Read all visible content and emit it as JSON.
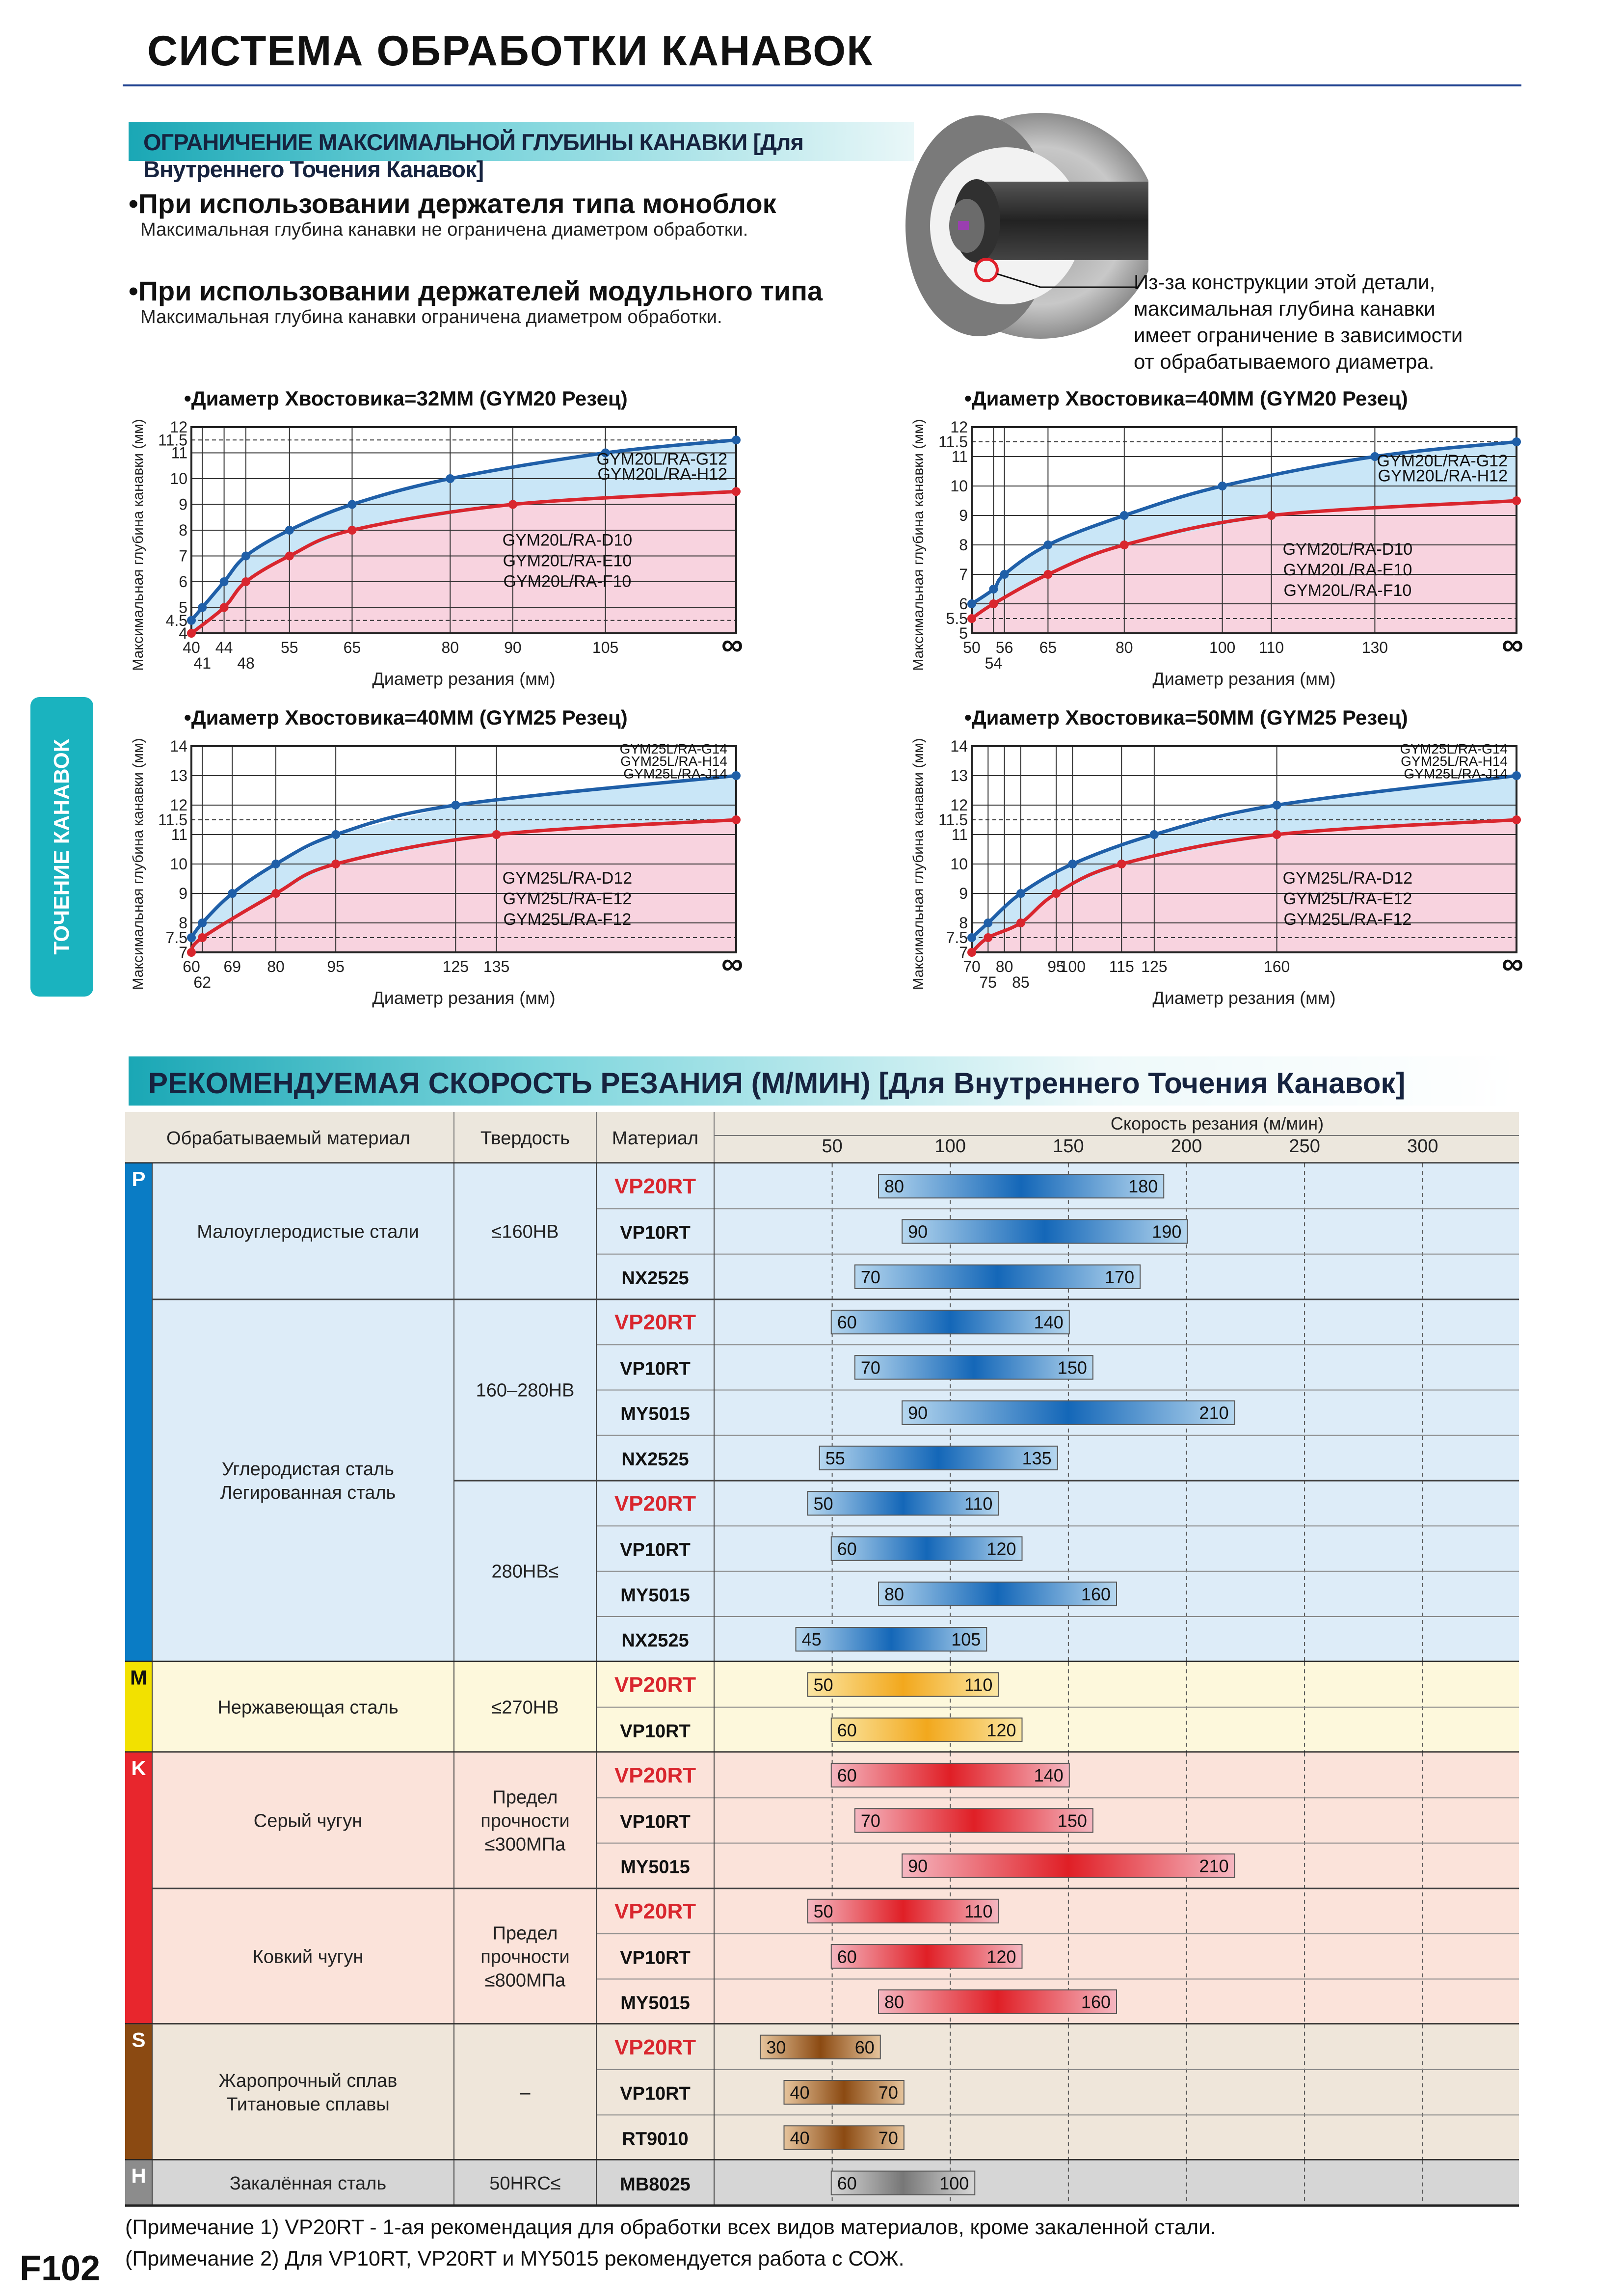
{
  "title": "СИСТЕМА ОБРАБОТКИ КАНАВОК",
  "section1": {
    "heading": "ОГРАНИЧЕНИЕ МАКСИМАЛЬНОЙ ГЛУБИНЫ КАНАВКИ [Для Внутреннего Точения Канавок]",
    "bullets": [
      {
        "head": "При использовании держателя типа моноблок",
        "desc": "Максимальная глубина канавки не ограничена диаметром обработки."
      },
      {
        "head": "При использовании держателей модульного типа",
        "desc": "Максимальная глубина канавки ограничена диаметром обработки."
      }
    ],
    "note": [
      "Из-за конструкции этой детали,",
      "максимальная глубина канавки",
      "имеет ограничение в зависимости",
      "от обрабатываемого диаметра."
    ]
  },
  "side_tab": "ТОЧЕНИЕ КАНАВОК",
  "chart_common": {
    "ylabel": "Максимальная глубина канавки (мм)",
    "xlabel": "Диаметр резания (мм)",
    "infinity": "∞"
  },
  "colors": {
    "blue": "#1f5fa8",
    "red": "#d9262e",
    "blue_fill": "#c9e6f7",
    "red_fill": "#f8d3df",
    "grid": "#333333"
  },
  "chart_data": [
    {
      "type": "line",
      "title": "•Диаметр Хвостовика=32ММ (GYM20 Резец)",
      "ylim": [
        4,
        12
      ],
      "yticks": [
        4,
        4.5,
        5,
        6,
        7,
        8,
        9,
        10,
        11,
        11.5,
        12
      ],
      "dashed": [
        4.5,
        11.5
      ],
      "xticks": [
        "40",
        "44",
        "55",
        "65",
        "80",
        "90",
        "105"
      ],
      "xticks_low": [
        "41",
        "48"
      ],
      "xpos": {
        "40": 0,
        "41": 0.02,
        "44": 0.06,
        "48": 0.1,
        "55": 0.18,
        "65": 0.295,
        "80": 0.475,
        "90": 0.59,
        "105": 0.76,
        "inf": 1
      },
      "series": [
        {
          "name": "GYM20L/RA-G12 GYM20L/RA-H12",
          "labels": [
            "GYM20L/RA-G12",
            "GYM20L/RA-H12"
          ],
          "color": "blue",
          "x": [
            "40",
            "41",
            "44",
            "48",
            "55",
            "65",
            "80",
            "105",
            "inf"
          ],
          "y": [
            4.5,
            5,
            6,
            7,
            8,
            9,
            10,
            11,
            11.5
          ]
        },
        {
          "name": "GYM20L/RA-D10 GYM20L/RA-E10 GYM20L/RA-F10",
          "labels": [
            "GYM20L/RA-D10",
            "GYM20L/RA-E10",
            "GYM20L/RA-F10"
          ],
          "color": "red",
          "x": [
            "40",
            "44",
            "48",
            "55",
            "65",
            "90",
            "inf"
          ],
          "y": [
            4,
            5,
            6,
            7,
            8,
            9,
            9.5
          ]
        }
      ]
    },
    {
      "type": "line",
      "title": "•Диаметр Хвостовика=40ММ (GYM20 Резец)",
      "ylim": [
        5,
        12
      ],
      "yticks": [
        5,
        5.5,
        6,
        7,
        8,
        9,
        10,
        11,
        11.5,
        12
      ],
      "dashed": [
        5.5,
        11.5
      ],
      "xticks": [
        "50",
        "56",
        "65",
        "80",
        "100",
        "110",
        "130"
      ],
      "xticks_low": [
        "54"
      ],
      "xpos": {
        "50": 0,
        "54": 0.04,
        "56": 0.06,
        "65": 0.14,
        "80": 0.28,
        "100": 0.46,
        "110": 0.55,
        "130": 0.74,
        "inf": 1
      },
      "series": [
        {
          "name": "GYM20L/RA-G12 GYM20L/RA-H12",
          "labels": [
            "GYM20L/RA-G12",
            "GYM20L/RA-H12"
          ],
          "color": "blue",
          "x": [
            "50",
            "54",
            "56",
            "65",
            "80",
            "100",
            "130",
            "inf"
          ],
          "y": [
            6,
            6.5,
            7,
            8,
            9,
            10,
            11,
            11.5
          ]
        },
        {
          "name": "GYM20L/RA-D10 GYM20L/RA-E10 GYM20L/RA-F10",
          "labels": [
            "GYM20L/RA-D10",
            "GYM20L/RA-E10",
            "GYM20L/RA-F10"
          ],
          "color": "red",
          "x": [
            "50",
            "54",
            "65",
            "80",
            "110",
            "inf"
          ],
          "y": [
            5.5,
            6,
            7,
            8,
            9,
            9.5
          ]
        }
      ]
    },
    {
      "type": "line",
      "title": "•Диаметр Хвостовика=40ММ (GYM25 Резец)",
      "ylim": [
        7,
        14
      ],
      "yticks": [
        7,
        7.5,
        8,
        9,
        10,
        11,
        11.5,
        12,
        13,
        14
      ],
      "dashed": [
        7.5,
        11.5
      ],
      "xticks": [
        "60",
        "69",
        "80",
        "95",
        "125",
        "135"
      ],
      "xticks_low": [
        "62"
      ],
      "xpos": {
        "60": 0,
        "62": 0.02,
        "69": 0.075,
        "80": 0.155,
        "95": 0.265,
        "125": 0.485,
        "135": 0.56,
        "inf": 1
      },
      "series": [
        {
          "name": "GYM25L/RA-G14 GYM25L/RA-H14 GYM25L/RA-J14",
          "labels": [
            "GYM25L/RA-G14",
            "GYM25L/RA-H14",
            "GYM25L/RA-J14"
          ],
          "color": "blue",
          "x": [
            "60",
            "62",
            "69",
            "80",
            "95",
            "125",
            "inf"
          ],
          "y": [
            7.5,
            8,
            9,
            10,
            11,
            12,
            13
          ]
        },
        {
          "name": "GYM25L/RA-D12 GYM25L/RA-E12 GYM25L/RA-F12",
          "labels": [
            "GYM25L/RA-D12",
            "GYM25L/RA-E12",
            "GYM25L/RA-F12"
          ],
          "color": "red",
          "x": [
            "60",
            "62",
            "80",
            "95",
            "135",
            "inf"
          ],
          "y": [
            7,
            7.5,
            9,
            10,
            11,
            11.5
          ]
        }
      ]
    },
    {
      "type": "line",
      "title": "•Диаметр Хвостовика=50ММ (GYM25 Резец)",
      "ylim": [
        7,
        14
      ],
      "yticks": [
        7,
        7.5,
        8,
        9,
        10,
        11,
        11.5,
        12,
        13,
        14
      ],
      "dashed": [
        7.5,
        11.5
      ],
      "xticks": [
        "70",
        "80",
        "95",
        "100",
        "115",
        "125",
        "160"
      ],
      "xticks_low": [
        "75",
        "85"
      ],
      "xpos": {
        "70": 0,
        "75": 0.03,
        "80": 0.06,
        "85": 0.09,
        "95": 0.155,
        "100": 0.185,
        "115": 0.275,
        "125": 0.335,
        "160": 0.56,
        "inf": 1
      },
      "series": [
        {
          "name": "GYM25L/RA-G14 GYM25L/RA-H14 GYM25L/RA-J14",
          "labels": [
            "GYM25L/RA-G14",
            "GYM25L/RA-H14",
            "GYM25L/RA-J14"
          ],
          "color": "blue",
          "x": [
            "70",
            "75",
            "85",
            "100",
            "125",
            "160",
            "inf"
          ],
          "y": [
            7.5,
            8,
            9,
            10,
            11,
            12,
            13
          ]
        },
        {
          "name": "GYM25L/RA-D12 GYM25L/RA-E12 GYM25L/RA-F12",
          "labels": [
            "GYM25L/RA-D12",
            "GYM25L/RA-E12",
            "GYM25L/RA-F12"
          ],
          "color": "red",
          "x": [
            "70",
            "75",
            "85",
            "95",
            "115",
            "160",
            "inf"
          ],
          "y": [
            7,
            7.5,
            8,
            9,
            10,
            11,
            11.5
          ]
        }
      ]
    }
  ],
  "section2": {
    "heading": "РЕКОМЕНДУЕМАЯ СКОРОСТЬ РЕЗАНИЯ (М/МИН) [Для Внутреннего Точения Канавок]",
    "headers": {
      "material": "Обрабатываемый материал",
      "hardness": "Твердость",
      "grade": "Материал",
      "speed": "Скорость резания (м/мин)"
    },
    "speed_scale": [
      50,
      100,
      150,
      200,
      250,
      300
    ],
    "speed_range": [
      0,
      320
    ],
    "groups": [
      {
        "code": "P",
        "color": "#0a7cc5",
        "bg": "#ddecf8",
        "bar": "blue",
        "materials": [
          {
            "name": [
              "Малоуглеродистые стали"
            ],
            "hardness_rows": [
              {
                "text": [
                  "≤160HB"
                ],
                "rows": [
                  [
                    "VP20RT",
                    80,
                    180
                  ],
                  [
                    "VP10RT",
                    90,
                    190
                  ],
                  [
                    "NX2525",
                    70,
                    170
                  ]
                ]
              }
            ]
          },
          {
            "name": [
              "Углеродистая сталь",
              "Легированная сталь"
            ],
            "hardness_rows": [
              {
                "text": [
                  "160–280HB"
                ],
                "rows": [
                  [
                    "VP20RT",
                    60,
                    140
                  ],
                  [
                    "VP10RT",
                    70,
                    150
                  ],
                  [
                    "MY5015",
                    90,
                    210
                  ],
                  [
                    "NX2525",
                    55,
                    135
                  ]
                ]
              },
              {
                "text": [
                  "280HB≤"
                ],
                "rows": [
                  [
                    "VP20RT",
                    50,
                    110
                  ],
                  [
                    "VP10RT",
                    60,
                    120
                  ],
                  [
                    "MY5015",
                    80,
                    160
                  ],
                  [
                    "NX2525",
                    45,
                    105
                  ]
                ]
              }
            ]
          }
        ]
      },
      {
        "code": "M",
        "color": "#f2e100",
        "bg": "#fdf8dc",
        "bar": "yellow",
        "materials": [
          {
            "name": [
              "Нержавеющая сталь"
            ],
            "hardness_rows": [
              {
                "text": [
                  "≤270HB"
                ],
                "rows": [
                  [
                    "VP20RT",
                    50,
                    110
                  ],
                  [
                    "VP10RT",
                    60,
                    120
                  ]
                ]
              }
            ]
          }
        ]
      },
      {
        "code": "K",
        "color": "#e8262d",
        "bg": "#fbe3da",
        "bar": "red",
        "materials": [
          {
            "name": [
              "Серый чугун"
            ],
            "hardness_rows": [
              {
                "text": [
                  "Предел",
                  "прочности",
                  "≤300МПа"
                ],
                "rows": [
                  [
                    "VP20RT",
                    60,
                    140
                  ],
                  [
                    "VP10RT",
                    70,
                    150
                  ],
                  [
                    "MY5015",
                    90,
                    210
                  ]
                ]
              }
            ]
          },
          {
            "name": [
              "Ковкий чугун"
            ],
            "hardness_rows": [
              {
                "text": [
                  "Предел",
                  "прочности",
                  "≤800МПа"
                ],
                "rows": [
                  [
                    "VP20RT",
                    50,
                    110
                  ],
                  [
                    "VP10RT",
                    60,
                    120
                  ],
                  [
                    "MY5015",
                    80,
                    160
                  ]
                ]
              }
            ]
          }
        ]
      },
      {
        "code": "S",
        "color": "#8b4a12",
        "bg": "#efe6da",
        "bar": "brown",
        "materials": [
          {
            "name": [
              "Жаропрочный сплав",
              "Титановые сплавы"
            ],
            "hardness_rows": [
              {
                "text": [
                  "–"
                ],
                "rows": [
                  [
                    "VP20RT",
                    30,
                    60
                  ],
                  [
                    "VP10RT",
                    40,
                    70
                  ],
                  [
                    "RT9010",
                    40,
                    70
                  ]
                ]
              }
            ]
          }
        ]
      },
      {
        "code": "H",
        "color": "#8c8c8c",
        "bg": "#d6d6d6",
        "bar": "gray",
        "materials": [
          {
            "name": [
              "Закалённая сталь"
            ],
            "hardness_rows": [
              {
                "text": [
                  "50HRC≤"
                ],
                "rows": [
                  [
                    "MB8025",
                    60,
                    100
                  ]
                ]
              }
            ]
          }
        ]
      }
    ]
  },
  "notes": [
    "(Примечание 1) VP20RT - 1-ая рекомендация для обработки всех видов материалов, кроме закаленной стали.",
    "(Примечание 2) Для VP10RT, VP20RT и MY5015 рекомендуется работа с СОЖ."
  ],
  "page_number": "F102"
}
